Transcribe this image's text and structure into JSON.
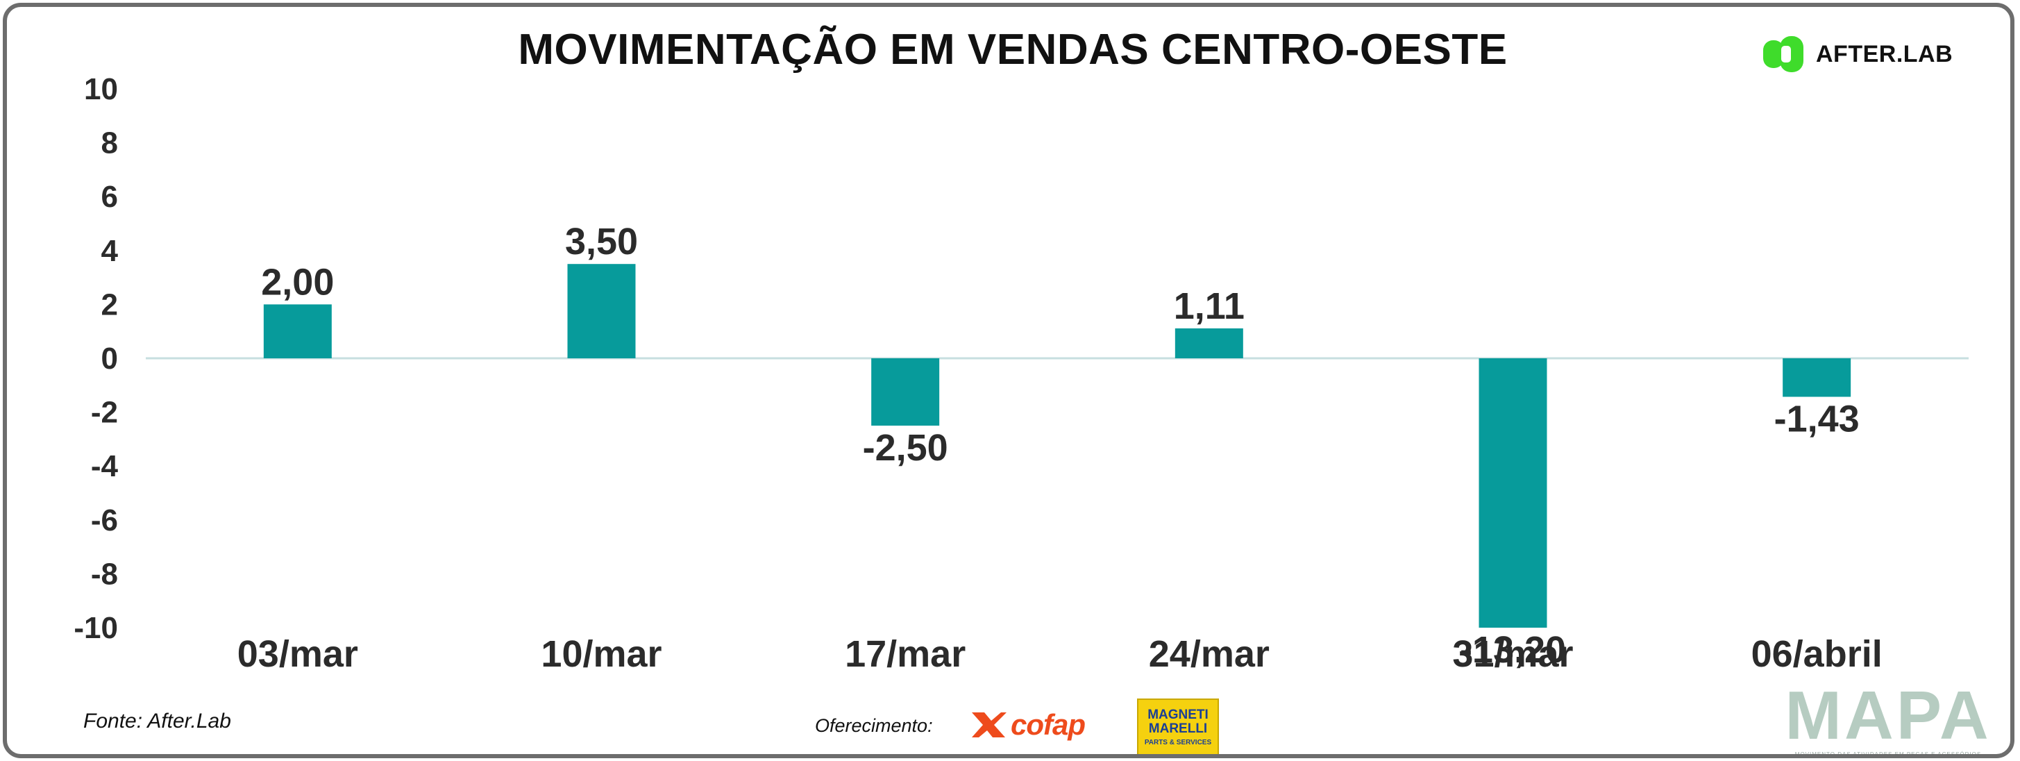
{
  "header": {
    "title": "MOVIMENTAÇÃO EM VENDAS CENTRO-OESTE",
    "brand": "AFTER.LAB",
    "brand_color": "#3fdc2b"
  },
  "footer": {
    "source": "Fonte: After.Lab",
    "sponsor_label": "Oferecimento:",
    "sponsors": [
      "cofap",
      "MAGNETI MARELLI",
      "PARTS & SERVICES"
    ],
    "logo_title": "MAPA",
    "logo_tagline": "MOVIMENTO DAS ATIVIDADES EM PEÇAS E ACESSÓRIOS"
  },
  "chart_data": {
    "type": "bar",
    "title": "MOVIMENTAÇÃO EM VENDAS CENTRO-OESTE",
    "categories": [
      "03/mar",
      "10/mar",
      "17/mar",
      "24/mar",
      "31/mar",
      "06/abril"
    ],
    "values": [
      2.0,
      3.5,
      -2.5,
      1.11,
      -13.2,
      -1.43
    ],
    "value_labels": [
      "2,00",
      "3,50",
      "-2,50",
      "1,11",
      "-13,20",
      "-1,43"
    ],
    "ylim": [
      -10,
      10
    ],
    "yticks": [
      10,
      8,
      6,
      4,
      2,
      0,
      -2,
      -4,
      -6,
      -8,
      -10
    ],
    "xlabel": "",
    "ylabel": "",
    "grid": false,
    "legend": "none",
    "bar_color": "#079b9b",
    "zero_line_color": "#c7dfe0"
  }
}
